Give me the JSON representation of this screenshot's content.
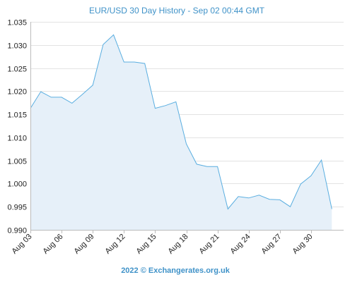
{
  "chart_data": {
    "type": "area",
    "title": "EUR/USD 30 Day History - Sep 02 00:44 GMT",
    "footer": "2022 © Exchangerates.org.uk",
    "ylim": [
      0.99,
      1.035
    ],
    "y_ticks": [
      "1.035",
      "1.030",
      "1.025",
      "1.020",
      "1.015",
      "1.010",
      "1.005",
      "1.000",
      "0.995",
      "0.990"
    ],
    "x_ticks": [
      "Aug 03",
      "Aug 06",
      "Aug 09",
      "Aug 12",
      "Aug 15",
      "Aug 18",
      "Aug 21",
      "Aug 24",
      "Aug 27",
      "Aug 30"
    ],
    "grid": true,
    "colors": {
      "line": "#5aaee0",
      "fill": "#e6f0f9",
      "title": "#3f92c8"
    },
    "x": [
      "Aug 03",
      "Aug 04",
      "Aug 05",
      "Aug 06",
      "Aug 07",
      "Aug 08",
      "Aug 09",
      "Aug 10",
      "Aug 11",
      "Aug 12",
      "Aug 13",
      "Aug 14",
      "Aug 15",
      "Aug 16",
      "Aug 17",
      "Aug 18",
      "Aug 19",
      "Aug 20",
      "Aug 21",
      "Aug 22",
      "Aug 23",
      "Aug 24",
      "Aug 25",
      "Aug 26",
      "Aug 27",
      "Aug 28",
      "Aug 29",
      "Aug 30",
      "Aug 31",
      "Sep 01"
    ],
    "values": [
      1.0163,
      1.0199,
      1.0187,
      1.0187,
      1.0174,
      1.0193,
      1.0213,
      1.0301,
      1.0322,
      1.0263,
      1.0263,
      1.026,
      1.0163,
      1.0169,
      1.0177,
      1.0086,
      1.0042,
      1.0037,
      1.0037,
      0.9945,
      0.9972,
      0.9969,
      0.9975,
      0.9966,
      0.9965,
      0.995,
      0.9999,
      1.0017,
      1.0051,
      0.9945
    ]
  }
}
